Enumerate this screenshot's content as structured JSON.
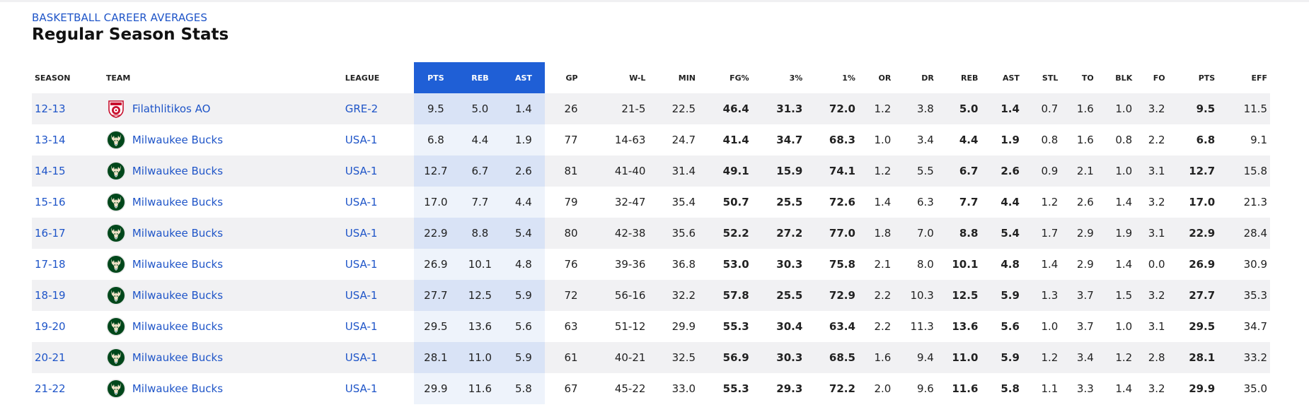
{
  "header": {
    "kicker": "BASKETBALL CAREER AVERAGES",
    "title": "Regular Season Stats"
  },
  "colors": {
    "accent": "#1f5fd6",
    "link": "#1f55c8",
    "highlight_odd": "#d9e3f6",
    "highlight_even": "#eef3fb",
    "row_alt": "#f1f1f3"
  },
  "columns": [
    "SEASON",
    "TEAM",
    "LEAGUE",
    "PTS",
    "REB",
    "AST",
    "GP",
    "W-L",
    "MIN",
    "FG%",
    "3%",
    "1%",
    "OR",
    "DR",
    "REB",
    "AST",
    "STL",
    "TO",
    "BLK",
    "FO",
    "PTS",
    "EFF"
  ],
  "rows": [
    {
      "season": "12-13",
      "team": "Filathlitikos AO",
      "logo": "filathlitikos-logo-icon",
      "league": "GRE-2",
      "pts": "9.5",
      "reb": "5.0",
      "ast": "1.4",
      "gp": "26",
      "wl": "21-5",
      "min": "22.5",
      "fg": "46.4",
      "three": "31.3",
      "ft": "72.0",
      "or": "1.2",
      "dr": "3.8",
      "reb2": "5.0",
      "ast2": "1.4",
      "stl": "0.7",
      "to": "1.6",
      "blk": "1.0",
      "fo": "3.2",
      "pts2": "9.5",
      "eff": "11.5"
    },
    {
      "season": "13-14",
      "team": "Milwaukee Bucks",
      "logo": "bucks-logo-icon",
      "league": "USA-1",
      "pts": "6.8",
      "reb": "4.4",
      "ast": "1.9",
      "gp": "77",
      "wl": "14-63",
      "min": "24.7",
      "fg": "41.4",
      "three": "34.7",
      "ft": "68.3",
      "or": "1.0",
      "dr": "3.4",
      "reb2": "4.4",
      "ast2": "1.9",
      "stl": "0.8",
      "to": "1.6",
      "blk": "0.8",
      "fo": "2.2",
      "pts2": "6.8",
      "eff": "9.1"
    },
    {
      "season": "14-15",
      "team": "Milwaukee Bucks",
      "logo": "bucks-logo-icon",
      "league": "USA-1",
      "pts": "12.7",
      "reb": "6.7",
      "ast": "2.6",
      "gp": "81",
      "wl": "41-40",
      "min": "31.4",
      "fg": "49.1",
      "three": "15.9",
      "ft": "74.1",
      "or": "1.2",
      "dr": "5.5",
      "reb2": "6.7",
      "ast2": "2.6",
      "stl": "0.9",
      "to": "2.1",
      "blk": "1.0",
      "fo": "3.1",
      "pts2": "12.7",
      "eff": "15.8"
    },
    {
      "season": "15-16",
      "team": "Milwaukee Bucks",
      "logo": "bucks-logo-icon",
      "league": "USA-1",
      "pts": "17.0",
      "reb": "7.7",
      "ast": "4.4",
      "gp": "79",
      "wl": "32-47",
      "min": "35.4",
      "fg": "50.7",
      "three": "25.5",
      "ft": "72.6",
      "or": "1.4",
      "dr": "6.3",
      "reb2": "7.7",
      "ast2": "4.4",
      "stl": "1.2",
      "to": "2.6",
      "blk": "1.4",
      "fo": "3.2",
      "pts2": "17.0",
      "eff": "21.3"
    },
    {
      "season": "16-17",
      "team": "Milwaukee Bucks",
      "logo": "bucks-logo-icon",
      "league": "USA-1",
      "pts": "22.9",
      "reb": "8.8",
      "ast": "5.4",
      "gp": "80",
      "wl": "42-38",
      "min": "35.6",
      "fg": "52.2",
      "three": "27.2",
      "ft": "77.0",
      "or": "1.8",
      "dr": "7.0",
      "reb2": "8.8",
      "ast2": "5.4",
      "stl": "1.7",
      "to": "2.9",
      "blk": "1.9",
      "fo": "3.1",
      "pts2": "22.9",
      "eff": "28.4"
    },
    {
      "season": "17-18",
      "team": "Milwaukee Bucks",
      "logo": "bucks-logo-icon",
      "league": "USA-1",
      "pts": "26.9",
      "reb": "10.1",
      "ast": "4.8",
      "gp": "76",
      "wl": "39-36",
      "min": "36.8",
      "fg": "53.0",
      "three": "30.3",
      "ft": "75.8",
      "or": "2.1",
      "dr": "8.0",
      "reb2": "10.1",
      "ast2": "4.8",
      "stl": "1.4",
      "to": "2.9",
      "blk": "1.4",
      "fo": "0.0",
      "pts2": "26.9",
      "eff": "30.9"
    },
    {
      "season": "18-19",
      "team": "Milwaukee Bucks",
      "logo": "bucks-logo-icon",
      "league": "USA-1",
      "pts": "27.7",
      "reb": "12.5",
      "ast": "5.9",
      "gp": "72",
      "wl": "56-16",
      "min": "32.2",
      "fg": "57.8",
      "three": "25.5",
      "ft": "72.9",
      "or": "2.2",
      "dr": "10.3",
      "reb2": "12.5",
      "ast2": "5.9",
      "stl": "1.3",
      "to": "3.7",
      "blk": "1.5",
      "fo": "3.2",
      "pts2": "27.7",
      "eff": "35.3"
    },
    {
      "season": "19-20",
      "team": "Milwaukee Bucks",
      "logo": "bucks-logo-icon",
      "league": "USA-1",
      "pts": "29.5",
      "reb": "13.6",
      "ast": "5.6",
      "gp": "63",
      "wl": "51-12",
      "min": "29.9",
      "fg": "55.3",
      "three": "30.4",
      "ft": "63.4",
      "or": "2.2",
      "dr": "11.3",
      "reb2": "13.6",
      "ast2": "5.6",
      "stl": "1.0",
      "to": "3.7",
      "blk": "1.0",
      "fo": "3.1",
      "pts2": "29.5",
      "eff": "34.7"
    },
    {
      "season": "20-21",
      "team": "Milwaukee Bucks",
      "logo": "bucks-logo-icon",
      "league": "USA-1",
      "pts": "28.1",
      "reb": "11.0",
      "ast": "5.9",
      "gp": "61",
      "wl": "40-21",
      "min": "32.5",
      "fg": "56.9",
      "three": "30.3",
      "ft": "68.5",
      "or": "1.6",
      "dr": "9.4",
      "reb2": "11.0",
      "ast2": "5.9",
      "stl": "1.2",
      "to": "3.4",
      "blk": "1.2",
      "fo": "2.8",
      "pts2": "28.1",
      "eff": "33.2"
    },
    {
      "season": "21-22",
      "team": "Milwaukee Bucks",
      "logo": "bucks-logo-icon",
      "league": "USA-1",
      "pts": "29.9",
      "reb": "11.6",
      "ast": "5.8",
      "gp": "67",
      "wl": "45-22",
      "min": "33.0",
      "fg": "55.3",
      "three": "29.3",
      "ft": "72.2",
      "or": "2.0",
      "dr": "9.6",
      "reb2": "11.6",
      "ast2": "5.8",
      "stl": "1.1",
      "to": "3.3",
      "blk": "1.4",
      "fo": "3.2",
      "pts2": "29.9",
      "eff": "35.0"
    }
  ]
}
